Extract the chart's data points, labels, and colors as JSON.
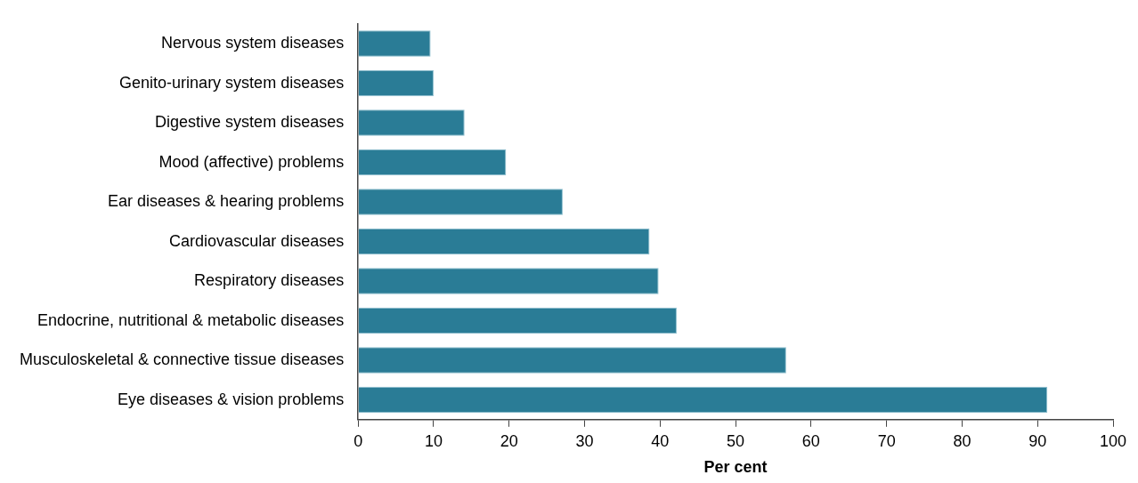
{
  "chart_data": {
    "type": "bar",
    "orientation": "horizontal",
    "xlabel": "Per cent",
    "categories": [
      "Nervous system diseases",
      "Genito-urinary system diseases",
      "Digestive system diseases",
      "Mood (affective) problems",
      "Ear diseases & hearing problems",
      "Cardiovascular diseases",
      "Respiratory diseases",
      "Endocrine, nutritional & metabolic diseases",
      "Musculoskeletal & connective tissue diseases",
      "Eye diseases & vision problems"
    ],
    "values": [
      9.6,
      10.0,
      14.1,
      19.6,
      27.1,
      38.6,
      39.8,
      42.2,
      56.7,
      91.3
    ],
    "color": "#2a7c96",
    "xlim": [
      0,
      100
    ],
    "xticks": [
      0,
      10,
      20,
      30,
      40,
      50,
      60,
      70,
      80,
      90,
      100
    ],
    "grid": false,
    "legend": false
  }
}
